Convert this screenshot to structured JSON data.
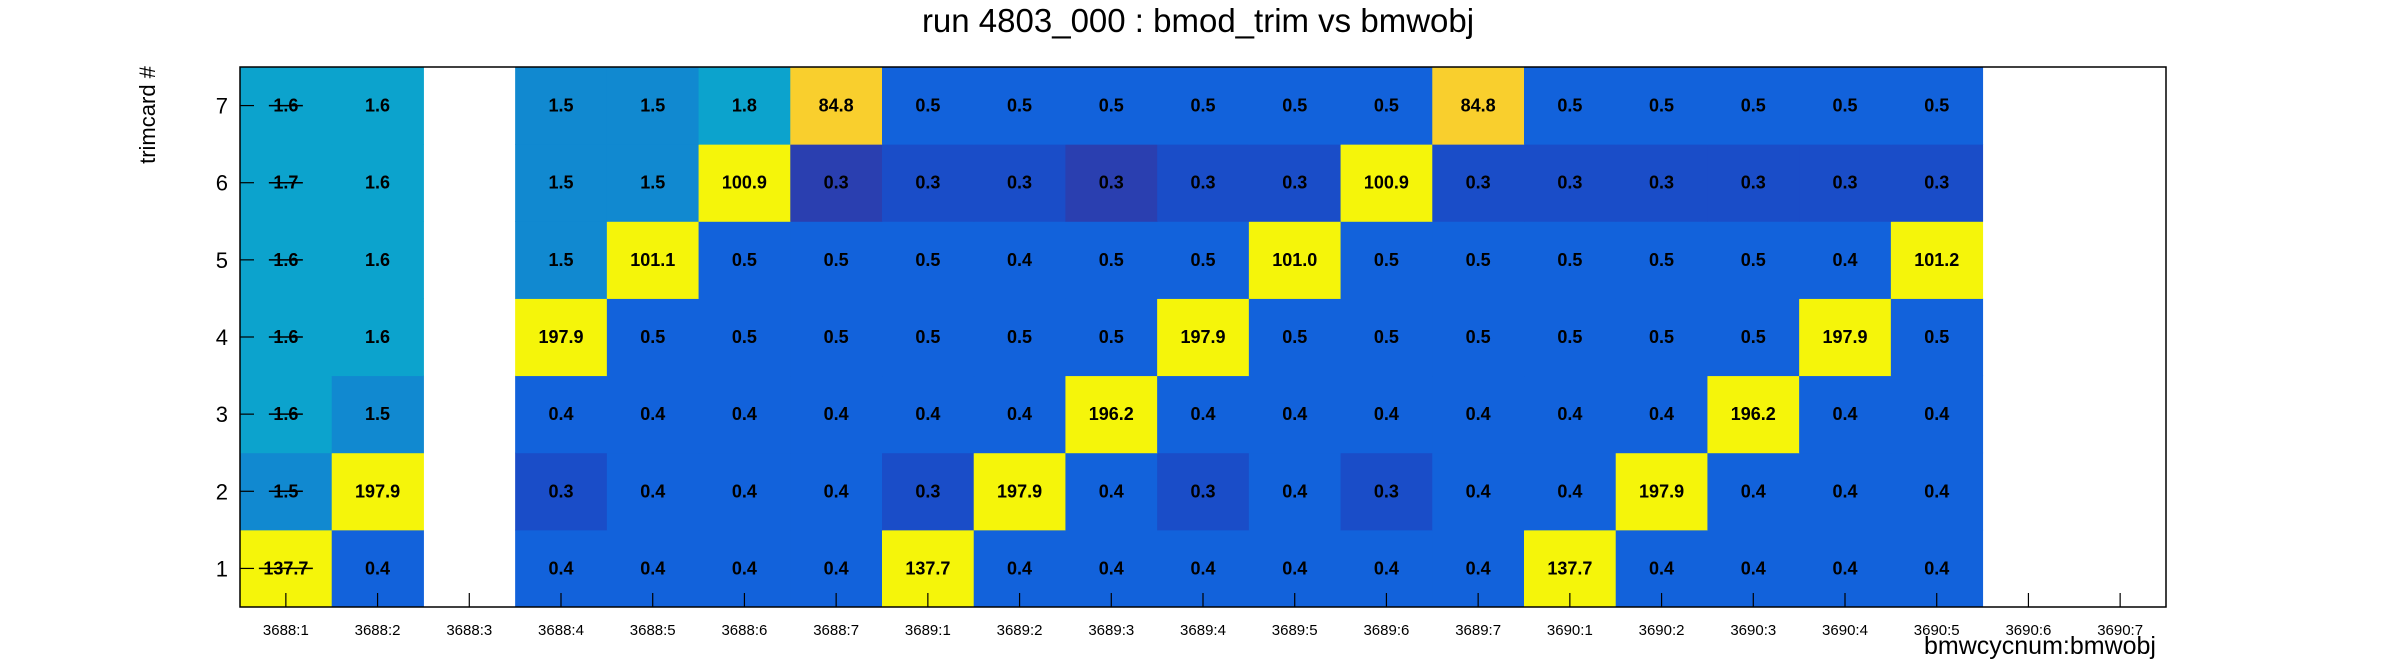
{
  "chart_data": {
    "type": "heatmap",
    "title": "run 4803_000 : bmod_trim vs bmwobj",
    "xlabel": "bmwcycnum:bmwobj",
    "ylabel": "trimcard #",
    "x_categories": [
      "3688:1",
      "3688:2",
      "3688:3",
      "3688:4",
      "3688:5",
      "3688:6",
      "3688:7",
      "3689:1",
      "3689:2",
      "3689:3",
      "3689:4",
      "3689:5",
      "3689:6",
      "3689:7",
      "3690:1",
      "3690:2",
      "3690:3",
      "3690:4",
      "3690:5",
      "3690:6",
      "3690:7"
    ],
    "y_categories": [
      "1",
      "2",
      "3",
      "4",
      "5",
      "6",
      "7"
    ],
    "values": {
      "7": [
        "1.6",
        "1.6",
        null,
        "1.5",
        "1.5",
        "1.8",
        "84.8",
        "0.5",
        "0.5",
        "0.5",
        "0.5",
        "0.5",
        "0.5",
        "84.8",
        "0.5",
        "0.5",
        "0.5",
        "0.5",
        "0.5",
        null,
        null
      ],
      "6": [
        "1.7",
        "1.6",
        null,
        "1.5",
        "1.5",
        "100.9",
        "0.3",
        "0.3",
        "0.3",
        "0.3",
        "0.3",
        "0.3",
        "100.9",
        "0.3",
        "0.3",
        "0.3",
        "0.3",
        "0.3",
        "0.3",
        null,
        null
      ],
      "5": [
        "1.6",
        "1.6",
        null,
        "1.5",
        "101.1",
        "0.5",
        "0.5",
        "0.5",
        "0.4",
        "0.5",
        "0.5",
        "101.0",
        "0.5",
        "0.5",
        "0.5",
        "0.5",
        "0.5",
        "0.4",
        "101.2",
        null,
        null
      ],
      "4": [
        "1.6",
        "1.6",
        null,
        "197.9",
        "0.5",
        "0.5",
        "0.5",
        "0.5",
        "0.5",
        "0.5",
        "197.9",
        "0.5",
        "0.5",
        "0.5",
        "0.5",
        "0.5",
        "0.5",
        "197.9",
        "0.5",
        null,
        null
      ],
      "3": [
        "1.6",
        "1.5",
        null,
        "0.4",
        "0.4",
        "0.4",
        "0.4",
        "0.4",
        "0.4",
        "196.2",
        "0.4",
        "0.4",
        "0.4",
        "0.4",
        "0.4",
        "0.4",
        "196.2",
        "0.4",
        "0.4",
        null,
        null
      ],
      "2": [
        "1.5",
        "197.9",
        null,
        "0.3",
        "0.4",
        "0.4",
        "0.4",
        "0.3",
        "197.9",
        "0.4",
        "0.3",
        "0.4",
        "0.3",
        "0.4",
        "0.4",
        "197.9",
        "0.4",
        "0.4",
        "0.4",
        null,
        null
      ],
      "1": [
        "137.7",
        "0.4",
        null,
        "0.4",
        "0.4",
        "0.4",
        "0.4",
        "137.7",
        "0.4",
        "0.4",
        "0.4",
        "0.4",
        "0.4",
        "0.4",
        "137.7",
        "0.4",
        "0.4",
        "0.4",
        "0.4",
        null,
        null
      ]
    },
    "struck_column": "3688:1",
    "colors": {
      "high": "#f5f50a",
      "mid_high": "#f9cf2d",
      "low_cyan": "#0ca3cd",
      "low_mid": "#1189d0",
      "base": "#1262db",
      "dark": "#1a4dc8",
      "darkest": "#2a3fb0"
    }
  }
}
